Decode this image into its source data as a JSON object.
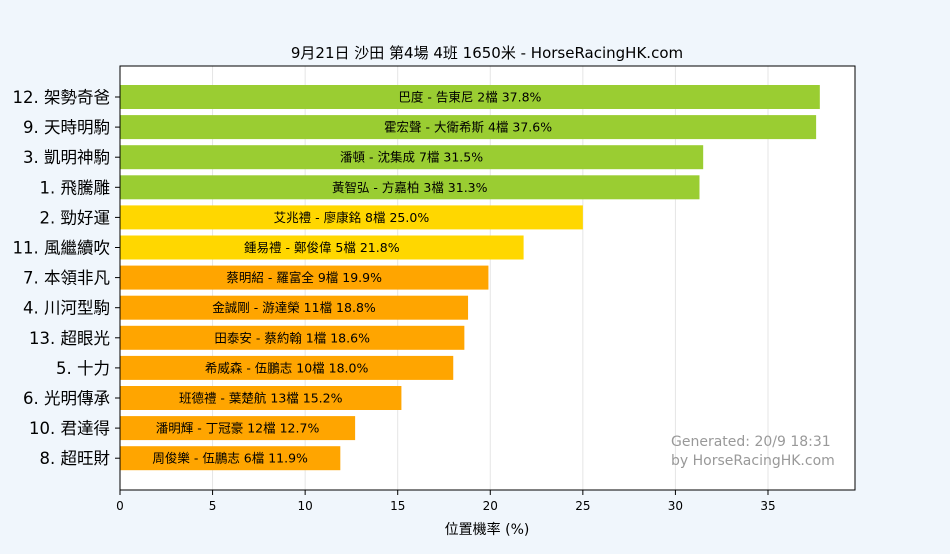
{
  "chart_data": {
    "type": "bar",
    "orientation": "horizontal",
    "title": "9月21日  沙田  第4場  4班  1650米 - HorseRacingHK.com",
    "xlabel": "位置機率 (%)",
    "ylabel": "",
    "xlim": [
      0,
      39.7
    ],
    "xticks": [
      0,
      5,
      10,
      15,
      20,
      25,
      30,
      35
    ],
    "grid": "vertical",
    "categories": [
      "12. 架勢奇爸",
      "9. 天時明駒",
      "3. 凱明神駒",
      "1. 飛騰雕",
      "2. 勁好運",
      "11. 風繼續吹",
      "7. 本領非凡",
      "4. 川河型駒",
      "13. 超眼光",
      "5. 十力",
      "6. 光明傳承",
      "10. 君達得",
      "8. 超旺財"
    ],
    "values": [
      37.8,
      37.6,
      31.5,
      31.3,
      25.0,
      21.8,
      19.9,
      18.8,
      18.6,
      18.0,
      15.2,
      12.7,
      11.9
    ],
    "bar_labels": [
      "巴度 - 告東尼 2檔  37.8%",
      "霍宏聲 - 大衛希斯 4檔  37.6%",
      "潘頓 - 沈集成 7檔  31.5%",
      "黃智弘 - 方嘉柏 3檔  31.3%",
      "艾兆禮 - 廖康銘 8檔  25.0%",
      "鍾易禮 - 鄭俊偉 5檔  21.8%",
      "蔡明紹 - 羅富全 9檔  19.9%",
      "金誠剛 - 游達榮 11檔  18.8%",
      "田泰安 - 蔡約翰 1檔  18.6%",
      "希威森 - 伍鵬志 10檔  18.0%",
      "班德禮 - 葉楚航 13檔  15.2%",
      "潘明輝 - 丁冠豪 12檔  12.7%",
      "周俊樂 - 伍鵬志 6檔  11.9%"
    ],
    "bar_colors": [
      "#9acd32",
      "#9acd32",
      "#9acd32",
      "#9acd32",
      "#ffd700",
      "#ffd700",
      "#ffa500",
      "#ffa500",
      "#ffa500",
      "#ffa500",
      "#ffa500",
      "#ffa500",
      "#ffa500"
    ],
    "watermark": [
      "Generated: 20/9 18:31",
      "by HorseRacingHK.com"
    ],
    "colors": {
      "background": "#f0f6fc",
      "plot_background": "#ffffff",
      "grid": "#e5e5e5",
      "watermark": "#999999"
    }
  }
}
